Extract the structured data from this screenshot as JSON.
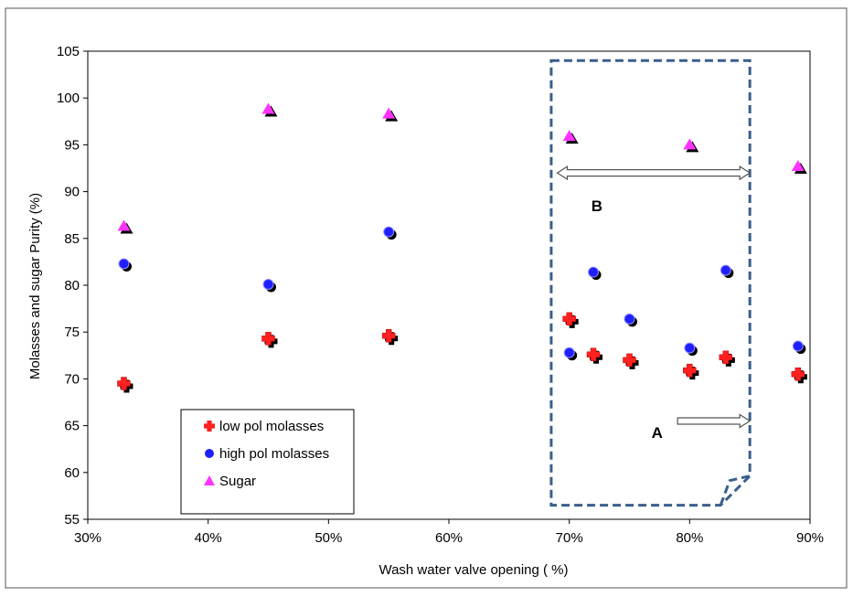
{
  "chart_data": {
    "type": "scatter",
    "xlabel": "Wash water valve opening ( %)",
    "ylabel": "Molasses and sugar Purity (%)",
    "xlim": [
      0.3,
      0.9
    ],
    "ylim": [
      55,
      105
    ],
    "xticks": [
      0.3,
      0.4,
      0.5,
      0.6,
      0.7,
      0.8,
      0.9
    ],
    "xtick_labels": [
      "30%",
      "40%",
      "50%",
      "60%",
      "70%",
      "80%",
      "90%"
    ],
    "yticks": [
      55,
      60,
      65,
      70,
      75,
      80,
      85,
      90,
      95,
      100,
      105
    ],
    "ytick_labels": [
      "55",
      "60",
      "65",
      "70",
      "75",
      "80",
      "85",
      "90",
      "95",
      "100",
      "105"
    ],
    "grid": false,
    "legend_position": "bottom-left",
    "series": [
      {
        "name": "low pol molasses",
        "marker": "square-plus",
        "color": "#ff2020",
        "x": [
          0.33,
          0.45,
          0.55,
          0.7,
          0.72,
          0.75,
          0.8,
          0.83,
          0.89
        ],
        "y": [
          69.5,
          74.3,
          74.6,
          76.4,
          72.6,
          72.0,
          70.9,
          72.3,
          70.5
        ]
      },
      {
        "name": "high pol molasses",
        "marker": "circle",
        "color": "#2020ff",
        "x": [
          0.33,
          0.45,
          0.55,
          0.7,
          0.72,
          0.75,
          0.8,
          0.83,
          0.89
        ],
        "y": [
          82.3,
          80.1,
          85.7,
          72.8,
          81.4,
          76.4,
          73.3,
          81.6,
          73.5
        ]
      },
      {
        "name": "Sugar",
        "marker": "triangle",
        "color": "#ff33ff",
        "x": [
          0.33,
          0.45,
          0.55,
          0.7,
          0.8,
          0.89
        ],
        "y": [
          86.3,
          98.8,
          98.3,
          95.9,
          95.0,
          92.7
        ]
      }
    ],
    "annotations": [
      {
        "label": "A",
        "type": "right-arrow",
        "x_from": 0.79,
        "x_to": 0.85,
        "y": 65.5,
        "label_x": 0.773,
        "label_y": 64.3
      },
      {
        "label": "B",
        "type": "double-arrow",
        "x_from": 0.69,
        "x_to": 0.85,
        "y": 92.0,
        "label_x": 0.723,
        "label_y": 88.5
      }
    ],
    "region_box": {
      "x0": 0.685,
      "x1": 0.85,
      "y0": 56.5,
      "y1": 104.0,
      "style": "dashed",
      "color": "#3a5f8a"
    }
  }
}
